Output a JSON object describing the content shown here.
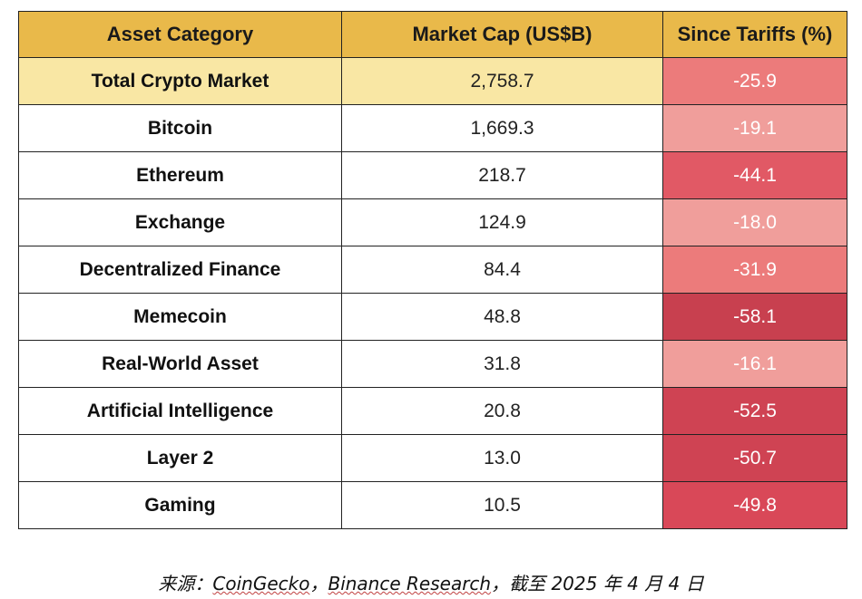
{
  "chart_data": {
    "type": "table",
    "columns": [
      "Asset Category",
      "Market Cap (US$B)",
      "Since Tariffs (%)"
    ],
    "rows": [
      {
        "category": "Total Crypto Market",
        "market_cap": "2,758.7",
        "since_tariffs": "-25.9",
        "color": "#ec7b7b"
      },
      {
        "category": "Bitcoin",
        "market_cap": "1,669.3",
        "since_tariffs": "-19.1",
        "color": "#f09e9b"
      },
      {
        "category": "Ethereum",
        "market_cap": "218.7",
        "since_tariffs": "-44.1",
        "color": "#e15965"
      },
      {
        "category": "Exchange",
        "market_cap": "124.9",
        "since_tariffs": "-18.0",
        "color": "#f09e9b"
      },
      {
        "category": "Decentralized Finance",
        "market_cap": "84.4",
        "since_tariffs": "-31.9",
        "color": "#ec7b7b"
      },
      {
        "category": "Memecoin",
        "market_cap": "48.8",
        "since_tariffs": "-58.1",
        "color": "#c8404f"
      },
      {
        "category": "Real-World Asset",
        "market_cap": "31.8",
        "since_tariffs": "-16.1",
        "color": "#f09e9b"
      },
      {
        "category": "Artificial Intelligence",
        "market_cap": "20.8",
        "since_tariffs": "-52.5",
        "color": "#cf4353"
      },
      {
        "category": "Layer 2",
        "market_cap": "13.0",
        "since_tariffs": "-50.7",
        "color": "#cf4353"
      },
      {
        "category": "Gaming",
        "market_cap": "10.5",
        "since_tariffs": "-49.8",
        "color": "#d94858"
      }
    ],
    "header_color": "#e9b94a",
    "highlight_row_color": "#f9e7a4"
  },
  "source": {
    "prefix": "来源：",
    "link1": "CoinGecko",
    "sep": "，",
    "link2": "Binance Research",
    "suffix": "，截至 2025 年 4 月 4 日"
  }
}
